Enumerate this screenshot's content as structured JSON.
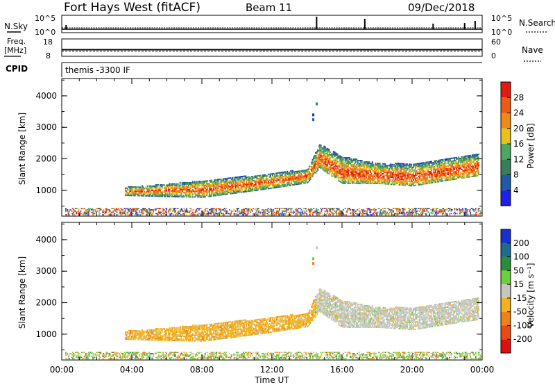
{
  "header": {
    "station": "Fort Hays West (fitACF)",
    "beam": "Beam 11",
    "date": "09/Dec/2018"
  },
  "strips": {
    "nsky_label": "N.Sky",
    "nsky_ticks": [
      "10^5",
      "10^0"
    ],
    "nsearch_label": "N.Search",
    "nsearch_ticks": [
      "10^5",
      "10^0"
    ],
    "freq_label_line1": "Freq.",
    "freq_label_line2": "[MHz]",
    "freq_ticks": [
      "18",
      "8"
    ],
    "nave_label": "Nave",
    "nave_ticks": [
      "60",
      "0"
    ],
    "cpid_label": "CPID",
    "cpid_text": "themis -3300 IF"
  },
  "colors": {
    "power_scale": [
      "#1e22e6",
      "#1f5aa8",
      "#3a7e58",
      "#4aa860",
      "#e7c21a",
      "#f08a14",
      "#ee5a10",
      "#e3180f"
    ],
    "velocity_scale": [
      "#1a2fd0",
      "#1f6b8c",
      "#2a8d3a",
      "#6ccf3e",
      "#c6c6c0",
      "#f2b21b",
      "#f0801a",
      "#ec4a12",
      "#e10c0c"
    ],
    "frame": "#000000"
  },
  "chart_data": [
    {
      "type": "heatmap",
      "name": "power",
      "ylabel": "Slant Range [km]",
      "ylim": [
        180,
        4550
      ],
      "yticks": [
        "1000",
        "2000",
        "3000",
        "4000"
      ],
      "xticks": [
        "00:00",
        "04:00",
        "08:00",
        "12:00",
        "16:00",
        "20:00",
        "00:00"
      ],
      "xlim_hours": [
        0,
        24
      ],
      "colorbar": {
        "label": "Power [dB]",
        "ticks": [
          "4",
          "8",
          "12",
          "16",
          "20",
          "24",
          "28"
        ],
        "range": [
          0,
          32
        ]
      },
      "echo_band": [
        {
          "hour": 3.6,
          "range_low": 820,
          "range_high": 1080
        },
        {
          "hour": 6.0,
          "range_low": 780,
          "range_high": 1180
        },
        {
          "hour": 8.0,
          "range_low": 760,
          "range_high": 1300
        },
        {
          "hour": 10.0,
          "range_low": 900,
          "range_high": 1400
        },
        {
          "hour": 12.0,
          "range_low": 1050,
          "range_high": 1530
        },
        {
          "hour": 14.0,
          "range_low": 1220,
          "range_high": 1650
        },
        {
          "hour": 14.7,
          "range_low": 1700,
          "range_high": 2450
        },
        {
          "hour": 16.0,
          "range_low": 1200,
          "range_high": 2050
        },
        {
          "hour": 18.0,
          "range_low": 1200,
          "range_high": 1850
        },
        {
          "hour": 20.0,
          "range_low": 1120,
          "range_high": 1820
        },
        {
          "hour": 22.0,
          "range_low": 1300,
          "range_high": 2000
        },
        {
          "hour": 23.8,
          "range_low": 1450,
          "range_high": 2150
        }
      ]
    },
    {
      "type": "heatmap",
      "name": "velocity",
      "ylabel": "Slant Range [km]",
      "ylim": [
        180,
        4550
      ],
      "yticks": [
        "1000",
        "2000",
        "3000",
        "4000"
      ],
      "xticks": [
        "00:00",
        "04:00",
        "08:00",
        "12:00",
        "16:00",
        "20:00",
        "00:00"
      ],
      "xlim_hours": [
        0,
        24
      ],
      "xlabel": "Time UT",
      "colorbar": {
        "label": "Velocity [m s⁻¹]",
        "ticks": [
          "200",
          "100",
          "50",
          "15",
          "-15",
          "-50",
          "-100",
          "-200"
        ],
        "range": [
          -250,
          250
        ]
      }
    }
  ]
}
